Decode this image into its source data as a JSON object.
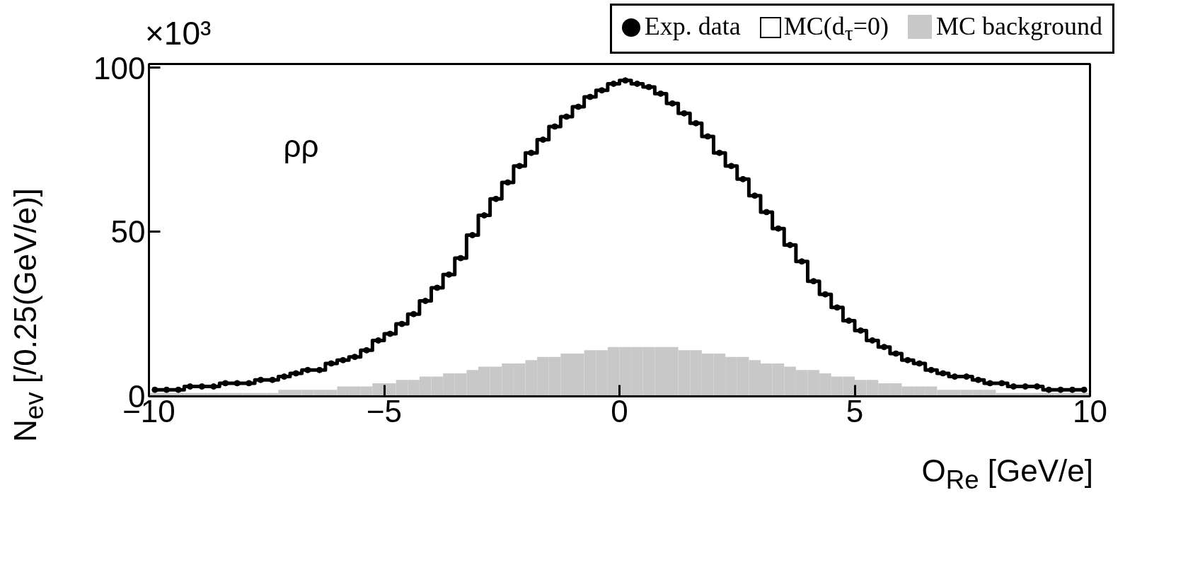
{
  "chart_data": {
    "type": "histogram",
    "xlabel": "O$_{Re}$ [GeV/e]",
    "ylabel": "N$_{ev}$ [/0.25(GeV/e)]",
    "annotations": [
      "×10³",
      "ρρ"
    ],
    "bins": [
      -10,
      -9.75,
      -9.5,
      -9.25,
      -9,
      -8.75,
      -8.5,
      -8.25,
      -8,
      -7.75,
      -7.5,
      -7.25,
      -7,
      -6.75,
      -6.5,
      -6.25,
      -6,
      -5.75,
      -5.5,
      -5.25,
      -5,
      -4.75,
      -4.5,
      -4.25,
      -4,
      -3.75,
      -3.5,
      -3.25,
      -3,
      -2.75,
      -2.5,
      -2.25,
      -2,
      -1.75,
      -1.5,
      -1.25,
      -1,
      -0.75,
      -0.5,
      -0.25,
      0,
      0.25,
      0.5,
      0.75,
      1,
      1.25,
      1.5,
      1.75,
      2,
      2.25,
      2.5,
      2.75,
      3,
      3.25,
      3.5,
      3.75,
      4,
      4.25,
      4.5,
      4.75,
      5,
      5.25,
      5.5,
      5.75,
      6,
      6.25,
      6.5,
      6.75,
      7,
      7.25,
      7.5,
      7.75,
      8,
      8.25,
      8.5,
      8.75,
      9,
      9.25,
      9.5,
      9.75,
      10
    ],
    "series": [
      {
        "name": "MC background",
        "color": "#c8c8c8",
        "values": [
          1,
          1,
          1,
          1,
          1,
          1,
          1,
          1,
          1,
          1,
          1,
          2,
          2,
          2,
          2,
          2,
          3,
          3,
          3,
          4,
          4,
          5,
          5,
          6,
          6,
          7,
          7,
          8,
          9,
          9,
          10,
          10,
          11,
          12,
          12,
          13,
          13,
          14,
          14,
          15,
          15,
          15,
          15,
          15,
          15,
          14,
          14,
          13,
          13,
          12,
          12,
          11,
          10,
          10,
          9,
          8,
          8,
          7,
          6,
          6,
          5,
          5,
          4,
          4,
          3,
          3,
          3,
          2,
          2,
          2,
          2,
          2,
          1,
          1,
          1,
          1,
          1,
          1,
          1,
          1
        ]
      },
      {
        "name": "MC(d$_{τ}$=0)",
        "type": "step",
        "color": "#000000",
        "x": [
          -9.875,
          -9.625,
          -9.375,
          -9.125,
          -8.875,
          -8.625,
          -8.375,
          -8.125,
          -7.875,
          -7.625,
          -7.375,
          -7.125,
          -6.875,
          -6.625,
          -6.375,
          -6.125,
          -5.875,
          -5.625,
          -5.375,
          -5.125,
          -4.875,
          -4.625,
          -4.375,
          -4.125,
          -3.875,
          -3.625,
          -3.375,
          -3.125,
          -2.875,
          -2.625,
          -2.375,
          -2.125,
          -1.875,
          -1.625,
          -1.375,
          -1.125,
          -0.875,
          -0.625,
          -0.375,
          -0.125,
          0.125,
          0.375,
          0.625,
          0.875,
          1.125,
          1.375,
          1.625,
          1.875,
          2.125,
          2.375,
          2.625,
          2.875,
          3.125,
          3.375,
          3.625,
          3.875,
          4.125,
          4.375,
          4.625,
          4.875,
          5.125,
          5.375,
          5.625,
          5.875,
          6.125,
          6.375,
          6.625,
          6.875,
          7.125,
          7.375,
          7.625,
          7.875,
          8.125,
          8.375,
          8.625,
          8.875,
          9.125,
          9.375,
          9.625,
          9.875
        ],
        "values": [
          2,
          2,
          2,
          3,
          3,
          3,
          4,
          4,
          4,
          5,
          5,
          6,
          7,
          8,
          8,
          10,
          11,
          12,
          14,
          17,
          19,
          22,
          25,
          29,
          33,
          37,
          42,
          49,
          55,
          60,
          65,
          70,
          74,
          78,
          82,
          85,
          88,
          91,
          93,
          95,
          96,
          95,
          94,
          92,
          89,
          86,
          83,
          79,
          74,
          70,
          66,
          61,
          56,
          51,
          46,
          41,
          35,
          31,
          27,
          23,
          20,
          17,
          15,
          13,
          11,
          10,
          8,
          7,
          6,
          6,
          5,
          4,
          4,
          3,
          3,
          3,
          2,
          2,
          2,
          2
        ]
      },
      {
        "name": "Exp. data",
        "type": "scatter",
        "color": "#000000",
        "marker": "circle",
        "x": [
          -9.875,
          -9.625,
          -9.375,
          -9.125,
          -8.875,
          -8.625,
          -8.375,
          -8.125,
          -7.875,
          -7.625,
          -7.375,
          -7.125,
          -6.875,
          -6.625,
          -6.375,
          -6.125,
          -5.875,
          -5.625,
          -5.375,
          -5.125,
          -4.875,
          -4.625,
          -4.375,
          -4.125,
          -3.875,
          -3.625,
          -3.375,
          -3.125,
          -2.875,
          -2.625,
          -2.375,
          -2.125,
          -1.875,
          -1.625,
          -1.375,
          -1.125,
          -0.875,
          -0.625,
          -0.375,
          -0.125,
          0.125,
          0.375,
          0.625,
          0.875,
          1.125,
          1.375,
          1.625,
          1.875,
          2.125,
          2.375,
          2.625,
          2.875,
          3.125,
          3.375,
          3.625,
          3.875,
          4.125,
          4.375,
          4.625,
          4.875,
          5.125,
          5.375,
          5.625,
          5.875,
          6.125,
          6.375,
          6.625,
          6.875,
          7.125,
          7.375,
          7.625,
          7.875,
          8.125,
          8.375,
          8.625,
          8.875,
          9.125,
          9.375,
          9.625,
          9.875
        ],
        "values": [
          2,
          2,
          2,
          3,
          3,
          3,
          4,
          4,
          4,
          5,
          5,
          6,
          7,
          8,
          8,
          10,
          11,
          12,
          14,
          17,
          19,
          22,
          25,
          29,
          33,
          37,
          42,
          49,
          55,
          60,
          65,
          70,
          74,
          78,
          82,
          85,
          88,
          91,
          93,
          95,
          96,
          95,
          94,
          92,
          89,
          86,
          83,
          79,
          74,
          70,
          66,
          61,
          56,
          51,
          46,
          41,
          35,
          31,
          27,
          23,
          20,
          17,
          15,
          13,
          11,
          10,
          8,
          7,
          6,
          6,
          5,
          4,
          4,
          3,
          3,
          3,
          2,
          2,
          2,
          2
        ]
      }
    ],
    "xlim": [
      -10,
      10
    ],
    "xticks": [
      -10,
      -5,
      0,
      5,
      10
    ],
    "ylim": [
      0,
      101
    ],
    "yticks": [
      0,
      50,
      100
    ],
    "grid": false,
    "legend": "top"
  }
}
